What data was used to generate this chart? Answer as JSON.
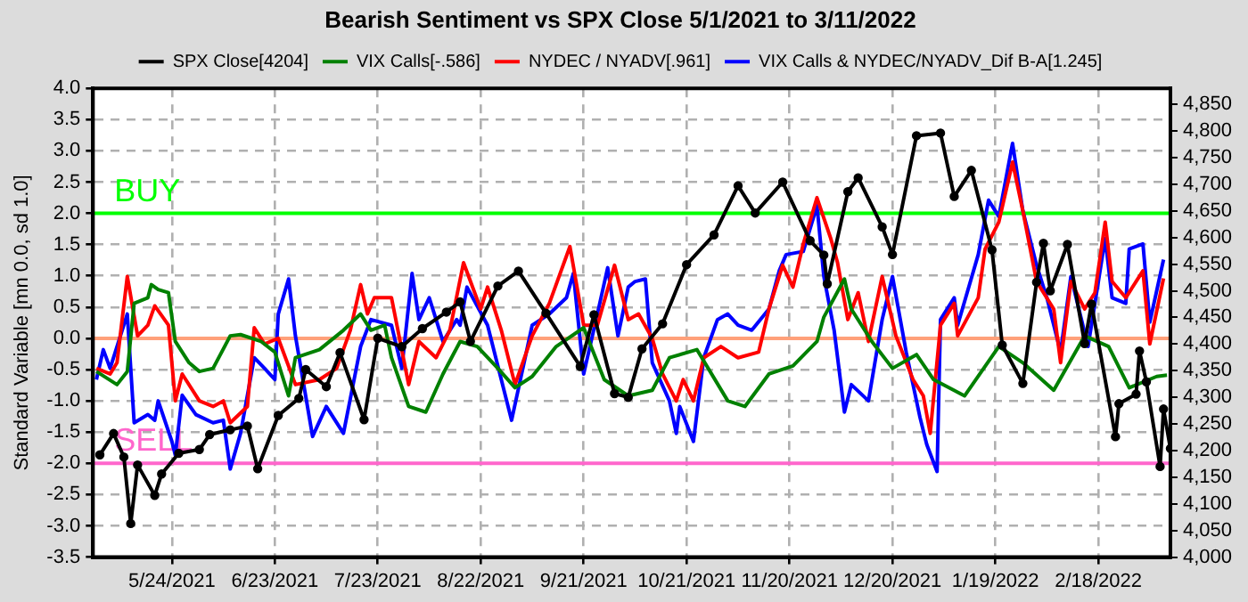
{
  "chart_data": {
    "type": "line",
    "title": "Bearish Sentiment vs SPX Close 5/1/2021 to 3/11/2022",
    "ylabel": "Standard Variable [mn 0.0, sd 1.0]",
    "xlim": [
      "2021-05-01",
      "2022-03-11"
    ],
    "xticks": [
      {
        "value": "2021-05-24",
        "label": "5/24/2021"
      },
      {
        "value": "2021-06-23",
        "label": "6/23/2021"
      },
      {
        "value": "2021-07-23",
        "label": "7/23/2021"
      },
      {
        "value": "2021-08-22",
        "label": "8/22/2021"
      },
      {
        "value": "2021-09-21",
        "label": "9/21/2021"
      },
      {
        "value": "2021-10-21",
        "label": "10/21/2021"
      },
      {
        "value": "2021-11-20",
        "label": "11/20/2021"
      },
      {
        "value": "2021-12-20",
        "label": "12/20/2021"
      },
      {
        "value": "2022-01-19",
        "label": "1/19/2022"
      },
      {
        "value": "2022-02-18",
        "label": "2/18/2022"
      }
    ],
    "ylim": [
      -3.5,
      4.0
    ],
    "yticks": [
      {
        "value": -3.5,
        "label": "-3.5"
      },
      {
        "value": -3,
        "label": "-3.0"
      },
      {
        "value": -2.5,
        "label": "-2.5"
      },
      {
        "value": -2,
        "label": "-2.0"
      },
      {
        "value": -1.5,
        "label": "-1.5"
      },
      {
        "value": -1,
        "label": "-1.0"
      },
      {
        "value": -0.5,
        "label": "-0.5"
      },
      {
        "value": 0,
        "label": "0.0"
      },
      {
        "value": 0.5,
        "label": "0.5"
      },
      {
        "value": 1,
        "label": "1.0"
      },
      {
        "value": 1.5,
        "label": "1.5"
      },
      {
        "value": 2,
        "label": "2.0"
      },
      {
        "value": 2.5,
        "label": "2.5"
      },
      {
        "value": 3,
        "label": "3.0"
      },
      {
        "value": 3.5,
        "label": "3.5"
      },
      {
        "value": 4,
        "label": "4.0"
      }
    ],
    "y2lim": [
      4000,
      4880
    ],
    "y2ticks": [
      {
        "value": 4000,
        "label": "4,000"
      },
      {
        "value": 4050,
        "label": "4,050"
      },
      {
        "value": 4100,
        "label": "4,100"
      },
      {
        "value": 4150,
        "label": "4,150"
      },
      {
        "value": 4200,
        "label": "4,200"
      },
      {
        "value": 4250,
        "label": "4,250"
      },
      {
        "value": 4300,
        "label": "4,300"
      },
      {
        "value": 4350,
        "label": "4,350"
      },
      {
        "value": 4400,
        "label": "4,400"
      },
      {
        "value": 4450,
        "label": "4,450"
      },
      {
        "value": 4500,
        "label": "4,500"
      },
      {
        "value": 4550,
        "label": "4,550"
      },
      {
        "value": 4600,
        "label": "4,600"
      },
      {
        "value": 4650,
        "label": "4,650"
      },
      {
        "value": 4700,
        "label": "4,700"
      },
      {
        "value": 4750,
        "label": "4,750"
      },
      {
        "value": 4800,
        "label": "4,800"
      },
      {
        "value": 4850,
        "label": "4,850"
      }
    ],
    "grid": true,
    "legend": "top",
    "line_style": "solid",
    "ref_lines": [
      {
        "axis": "y",
        "value": 2,
        "label": "BUY",
        "color": "#00ff00"
      },
      {
        "axis": "y",
        "value": 0,
        "label": null,
        "color": "#ffa07a"
      },
      {
        "axis": "y",
        "value": -2,
        "label": "SELL",
        "color": "#ff66cc"
      }
    ],
    "series": [
      {
        "name": "SPX Close[4204]",
        "color": "#000000",
        "axis": "y2",
        "marker": "circle",
        "x": [
          "2021-05-03",
          "2021-05-07",
          "2021-05-10",
          "2021-05-12",
          "2021-05-14",
          "2021-05-19",
          "2021-05-21",
          "2021-05-26",
          "2021-06-01",
          "2021-06-04",
          "2021-06-10",
          "2021-06-15",
          "2021-06-18",
          "2021-06-24",
          "2021-06-30",
          "2021-07-02",
          "2021-07-08",
          "2021-07-12",
          "2021-07-19",
          "2021-07-23",
          "2021-07-30",
          "2021-08-05",
          "2021-08-12",
          "2021-08-16",
          "2021-08-19",
          "2021-08-27",
          "2021-09-02",
          "2021-09-10",
          "2021-09-20",
          "2021-09-24",
          "2021-09-30",
          "2021-10-04",
          "2021-10-08",
          "2021-10-14",
          "2021-10-21",
          "2021-10-29",
          "2021-11-05",
          "2021-11-10",
          "2021-11-18",
          "2021-11-26",
          "2021-11-30",
          "2021-12-01",
          "2021-12-07",
          "2021-12-10",
          "2021-12-17",
          "2021-12-20",
          "2021-12-27",
          "2022-01-03",
          "2022-01-07",
          "2022-01-12",
          "2022-01-18",
          "2022-01-21",
          "2022-01-27",
          "2022-01-31",
          "2022-02-02",
          "2022-02-04",
          "2022-02-09",
          "2022-02-14",
          "2022-02-16",
          "2022-02-23",
          "2022-02-24",
          "2022-03-01",
          "2022-03-02",
          "2022-03-04",
          "2022-03-08",
          "2022-03-09",
          "2022-03-11"
        ],
        "values": [
          4192,
          4232,
          4188,
          4063,
          4173,
          4116,
          4156,
          4195,
          4202,
          4230,
          4239,
          4246,
          4166,
          4266,
          4298,
          4352,
          4320,
          4384,
          4258,
          4411,
          4395,
          4429,
          4460,
          4479,
          4405,
          4509,
          4537,
          4458,
          4358,
          4455,
          4307,
          4300,
          4391,
          4438,
          4549,
          4605,
          4697,
          4646,
          4704,
          4594,
          4567,
          4513,
          4686,
          4712,
          4620,
          4568,
          4791,
          4796,
          4677,
          4726,
          4577,
          4398,
          4326,
          4516,
          4589,
          4500,
          4587,
          4401,
          4475,
          4226,
          4288,
          4306,
          4387,
          4329,
          4170,
          4278,
          4204
        ]
      },
      {
        "name": "VIX Calls[-.586]",
        "color": "#008000",
        "marker": "none",
        "x": [
          "2021-05-02",
          "2021-05-08",
          "2021-05-11",
          "2021-05-13",
          "2021-05-17",
          "2021-05-18",
          "2021-05-20",
          "2021-05-23",
          "2021-05-25",
          "2021-05-29",
          "2021-06-01",
          "2021-06-05",
          "2021-06-10",
          "2021-06-13",
          "2021-06-19",
          "2021-06-23",
          "2021-06-27",
          "2021-06-29",
          "2021-07-06",
          "2021-07-13",
          "2021-07-18",
          "2021-07-21",
          "2021-07-25",
          "2021-07-27",
          "2021-08-01",
          "2021-08-06",
          "2021-08-11",
          "2021-08-16",
          "2021-08-21",
          "2021-08-27",
          "2021-09-01",
          "2021-09-06",
          "2021-09-13",
          "2021-09-21",
          "2021-09-27",
          "2021-10-04",
          "2021-10-11",
          "2021-10-16",
          "2021-10-24",
          "2021-11-02",
          "2021-11-07",
          "2021-11-14",
          "2021-11-21",
          "2021-11-28",
          "2021-11-30",
          "2021-12-06",
          "2021-12-08",
          "2021-12-14",
          "2021-12-20",
          "2021-12-27",
          "2022-01-01",
          "2022-01-10",
          "2022-01-20",
          "2022-01-27",
          "2022-02-05",
          "2022-02-14",
          "2022-02-21",
          "2022-02-27",
          "2022-03-07",
          "2022-03-10"
        ],
        "values": [
          -0.53,
          -0.74,
          -0.53,
          0.56,
          0.65,
          0.86,
          0.78,
          0.73,
          -0.05,
          -0.39,
          -0.53,
          -0.48,
          0.04,
          0.06,
          -0.05,
          -0.22,
          -0.92,
          -0.31,
          -0.18,
          0.13,
          0.39,
          0.13,
          0.21,
          -0.31,
          -1.09,
          -1.18,
          -0.57,
          -0.05,
          -0.13,
          -0.48,
          -0.79,
          -0.61,
          -0.13,
          0.17,
          -0.66,
          -0.92,
          -0.83,
          -0.31,
          -0.18,
          -1.0,
          -1.09,
          -0.57,
          -0.44,
          -0.05,
          0.34,
          0.95,
          0.47,
          -0.05,
          -0.48,
          -0.26,
          -0.66,
          -0.92,
          -0.13,
          -0.39,
          -0.83,
          0.04,
          -0.13,
          -0.79,
          -0.61,
          -0.59
        ]
      },
      {
        "name": "NYDEC / NYADV[.961]",
        "color": "#ff0000",
        "marker": "none",
        "x": [
          "2021-05-02",
          "2021-05-06",
          "2021-05-08",
          "2021-05-11",
          "2021-05-14",
          "2021-05-17",
          "2021-05-19",
          "2021-05-23",
          "2021-05-25",
          "2021-05-27",
          "2021-06-01",
          "2021-06-05",
          "2021-06-08",
          "2021-06-10",
          "2021-06-15",
          "2021-06-17",
          "2021-06-20",
          "2021-06-24",
          "2021-06-29",
          "2021-07-06",
          "2021-07-11",
          "2021-07-15",
          "2021-07-18",
          "2021-07-20",
          "2021-07-22",
          "2021-07-27",
          "2021-08-01",
          "2021-08-04",
          "2021-08-09",
          "2021-08-13",
          "2021-08-17",
          "2021-08-22",
          "2021-08-24",
          "2021-08-28",
          "2021-09-01",
          "2021-09-06",
          "2021-09-11",
          "2021-09-17",
          "2021-09-21",
          "2021-09-25",
          "2021-09-30",
          "2021-10-04",
          "2021-10-07",
          "2021-10-11",
          "2021-10-14",
          "2021-10-18",
          "2021-10-20",
          "2021-10-23",
          "2021-10-26",
          "2021-10-31",
          "2021-11-05",
          "2021-11-11",
          "2021-11-14",
          "2021-11-18",
          "2021-11-21",
          "2021-11-24",
          "2021-11-28",
          "2021-12-02",
          "2021-12-04",
          "2021-12-07",
          "2021-12-10",
          "2021-12-13",
          "2021-12-17",
          "2021-12-21",
          "2021-12-26",
          "2021-12-29",
          "2021-12-31",
          "2022-01-03",
          "2022-01-07",
          "2022-01-08",
          "2022-01-14",
          "2022-01-16",
          "2022-01-20",
          "2022-01-24",
          "2022-01-27",
          "2022-01-31",
          "2022-02-05",
          "2022-02-07",
          "2022-02-10",
          "2022-02-14",
          "2022-02-17",
          "2022-02-20",
          "2022-02-22",
          "2022-02-26",
          "2022-03-01",
          "2022-03-03",
          "2022-03-05",
          "2022-03-09"
        ],
        "values": [
          -0.48,
          -0.57,
          -0.39,
          0.99,
          0.04,
          0.21,
          0.52,
          0.21,
          -1.0,
          -0.57,
          -1.0,
          -1.09,
          -1.0,
          -1.35,
          -1.09,
          0.17,
          -0.09,
          0.0,
          -0.74,
          -0.66,
          -0.48,
          0.13,
          0.86,
          0.39,
          0.65,
          0.65,
          -0.74,
          -0.05,
          -0.31,
          0.13,
          1.21,
          0.47,
          0.82,
          0.13,
          -0.74,
          0.04,
          0.56,
          1.47,
          0.21,
          0.21,
          1.17,
          0.3,
          0.39,
          0.0,
          -0.57,
          -1.0,
          -0.66,
          -1.0,
          -0.31,
          -0.13,
          -0.31,
          -0.22,
          0.47,
          1.17,
          0.82,
          1.51,
          2.25,
          1.6,
          1.21,
          0.3,
          0.73,
          -0.05,
          0.99,
          0.04,
          -0.66,
          -0.92,
          -1.52,
          0.21,
          0.56,
          0.04,
          0.65,
          1.43,
          1.86,
          2.82,
          2.04,
          0.91,
          0.47,
          -0.39,
          0.91,
          0.47,
          0.73,
          1.86,
          0.91,
          0.65,
          0.91,
          1.08,
          -0.09,
          0.96
        ]
      },
      {
        "name": "VIX Calls & NYDEC/NYADV_Dif B-A[1.245]",
        "color": "#0000ff",
        "marker": "none",
        "x": [
          "2021-05-02",
          "2021-05-04",
          "2021-05-06",
          "2021-05-11",
          "2021-05-13",
          "2021-05-17",
          "2021-05-19",
          "2021-05-20",
          "2021-05-24",
          "2021-05-25",
          "2021-05-27",
          "2021-05-31",
          "2021-06-05",
          "2021-06-08",
          "2021-06-10",
          "2021-06-13",
          "2021-06-17",
          "2021-06-20",
          "2021-06-23",
          "2021-06-24",
          "2021-06-27",
          "2021-06-29",
          "2021-07-04",
          "2021-07-08",
          "2021-07-13",
          "2021-07-18",
          "2021-07-21",
          "2021-07-27",
          "2021-07-30",
          "2021-08-02",
          "2021-08-04",
          "2021-08-07",
          "2021-08-11",
          "2021-08-15",
          "2021-08-16",
          "2021-08-18",
          "2021-08-24",
          "2021-08-31",
          "2021-09-06",
          "2021-09-11",
          "2021-09-16",
          "2021-09-18",
          "2021-09-21",
          "2021-09-25",
          "2021-09-28",
          "2021-10-01",
          "2021-10-04",
          "2021-10-06",
          "2021-10-09",
          "2021-10-11",
          "2021-10-16",
          "2021-10-18",
          "2021-10-19",
          "2021-10-23",
          "2021-10-26",
          "2021-10-30",
          "2021-11-02",
          "2021-11-05",
          "2021-11-09",
          "2021-11-14",
          "2021-11-17",
          "2021-11-19",
          "2021-11-24",
          "2021-11-28",
          "2021-11-30",
          "2021-12-03",
          "2021-12-06",
          "2021-12-08",
          "2021-12-13",
          "2021-12-17",
          "2021-12-20",
          "2021-12-24",
          "2021-12-28",
          "2021-12-30",
          "2022-01-02",
          "2022-01-03",
          "2022-01-07",
          "2022-01-08",
          "2022-01-14",
          "2022-01-17",
          "2022-01-20",
          "2022-01-24",
          "2022-01-27",
          "2022-01-31",
          "2022-02-03",
          "2022-02-07",
          "2022-02-10",
          "2022-02-15",
          "2022-02-20",
          "2022-02-22",
          "2022-02-26",
          "2022-02-27",
          "2022-03-03",
          "2022-03-05",
          "2022-03-09"
        ],
        "values": [
          -0.66,
          -0.18,
          -0.48,
          0.39,
          -1.35,
          -1.22,
          -1.31,
          -1.0,
          -1.65,
          -1.87,
          -0.91,
          -1.22,
          -1.35,
          -1.31,
          -2.09,
          -1.52,
          -0.31,
          -0.48,
          -0.66,
          0.39,
          0.95,
          0.04,
          -1.57,
          -1.09,
          -1.52,
          -0.13,
          0.3,
          0.21,
          -0.48,
          1.04,
          0.3,
          0.65,
          -0.05,
          0.3,
          0.21,
          0.82,
          0.21,
          -1.31,
          0.21,
          0.39,
          0.65,
          1.04,
          -0.57,
          0.39,
          1.13,
          0.04,
          0.82,
          0.91,
          0.95,
          -0.39,
          -1.0,
          -1.52,
          -1.09,
          -1.65,
          -0.31,
          0.3,
          0.39,
          0.21,
          0.13,
          0.47,
          1.08,
          1.34,
          1.39,
          2.12,
          0.99,
          0.13,
          -1.18,
          -0.74,
          -1.0,
          0.3,
          0.99,
          -0.22,
          -1.26,
          -1.7,
          -2.13,
          0.3,
          0.65,
          0.21,
          1.34,
          2.21,
          1.95,
          3.12,
          2.04,
          1.17,
          0.65,
          -0.22,
          0.99,
          -0.13,
          1.6,
          0.65,
          0.56,
          1.43,
          1.51,
          0.26,
          1.26
        ]
      }
    ]
  }
}
